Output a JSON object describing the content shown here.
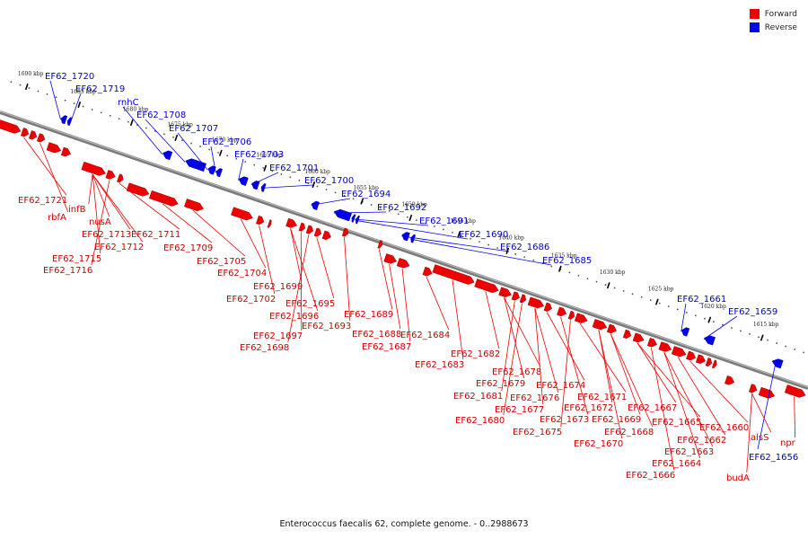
{
  "legend": [
    {
      "label": "Forward",
      "color": "#ee0000"
    },
    {
      "label": "Reverse",
      "color": "#0000ee"
    }
  ],
  "caption": "Enterococcus faecalis 62, complete genome. - 0..2988673",
  "scale_labels": [
    "1690 kbp",
    "1685 kbp",
    "1680 kbp",
    "1675 kbp",
    "1670 kbp",
    "1665 kbp",
    "1660 kbp",
    "1655 kbp",
    "1650 kbp",
    "1645 kbp",
    "1640 kbp",
    "1635 kbp",
    "1630 kbp",
    "1625 kbp",
    "1620 kbp",
    "1615 kbp"
  ],
  "reverse_labels": [
    "EF62_1720",
    "EF62_1719",
    "rnhC",
    "EF62_1708",
    "EF62_1707",
    "EF62_1706",
    "EF62_1703",
    "EF62_1701",
    "EF62_1700",
    "EF62_1694",
    "EF62_1692",
    "EF62_1691",
    "EF62_1690",
    "EF62_1686",
    "EF62_1685",
    "EF62_1661",
    "EF62_1659",
    "EF62_1656"
  ],
  "forward_labels": [
    "EF62_1721",
    "rbfA",
    "infB",
    "nusA",
    "EF62_1713",
    "EF62_1712",
    "EF62_1715",
    "EF62_1716",
    "EF62_1711",
    "EF62_1709",
    "EF62_1705",
    "EF62_1704",
    "EF62_1702",
    "EF62_1699",
    "EF62_1696",
    "EF62_1697",
    "EF62_1698",
    "EF62_1695",
    "EF62_1693",
    "EF62_1689",
    "EF62_1688",
    "EF62_1687",
    "EF62_1684",
    "EF62_1683",
    "EF62_1682",
    "EF62_1678",
    "EF62_1679",
    "EF62_1681",
    "EF62_1680",
    "EF62_1676",
    "EF62_1677",
    "EF62_1674",
    "EF62_1673",
    "EF62_1675",
    "EF62_1671",
    "EF62_1672",
    "EF62_1670",
    "EF62_1669",
    "EF62_1668",
    "EF62_1667",
    "EF62_1665",
    "EF62_1666",
    "EF62_1664",
    "EF62_1663",
    "EF62_1662",
    "EF62_1660",
    "alsS",
    "budA",
    "npr"
  ]
}
